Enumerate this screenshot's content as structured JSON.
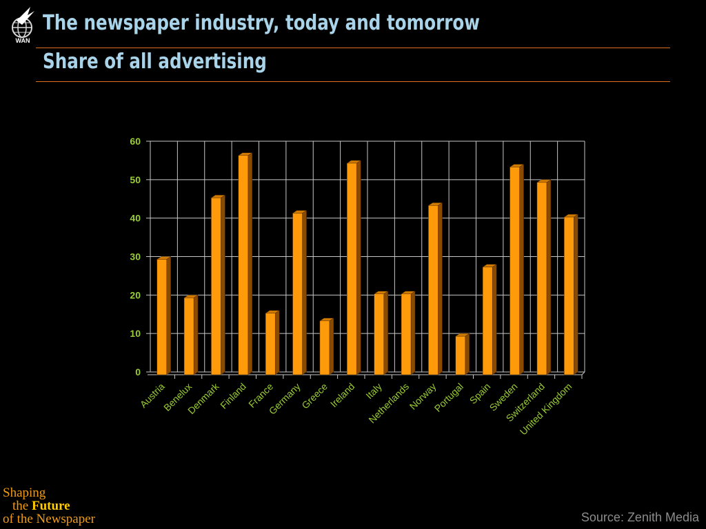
{
  "header": {
    "title": "The newspaper industry, today and tomorrow",
    "subtitle": "Share of all advertising",
    "logo_text": "WAN"
  },
  "chart_data": {
    "type": "bar",
    "categories": [
      "Austria",
      "Benelux",
      "Denmark",
      "Finland",
      "France",
      "Germany",
      "Greece",
      "Ireland",
      "Italy",
      "Netherlands",
      "Norway",
      "Portugal",
      "Spain",
      "Sweden",
      "Switzerland",
      "United Kingdom"
    ],
    "values": [
      30,
      20,
      46,
      57,
      16,
      42,
      14,
      55,
      21,
      21,
      44,
      10,
      28,
      54,
      50,
      41
    ],
    "title": "",
    "xlabel": "",
    "ylabel": "",
    "ylim": [
      0,
      60
    ],
    "yticks": [
      0,
      10,
      20,
      30,
      40,
      50,
      60
    ],
    "grid": true,
    "legend": "none",
    "bar_color": "#ff9a0a",
    "bar_side_color": "#8a4a00"
  },
  "footer": {
    "brand_line1": "Shaping",
    "brand_line2_the": "the",
    "brand_line2_future": "Future",
    "brand_line3": "of the Newspaper",
    "source": "Source: Zenith Media"
  },
  "colors": {
    "background": "#000000",
    "title": "#a9d3e8",
    "rule": "#e07020",
    "axis_label": "#9acd32",
    "brand": "#f39c12",
    "source": "#8c8c8c"
  }
}
